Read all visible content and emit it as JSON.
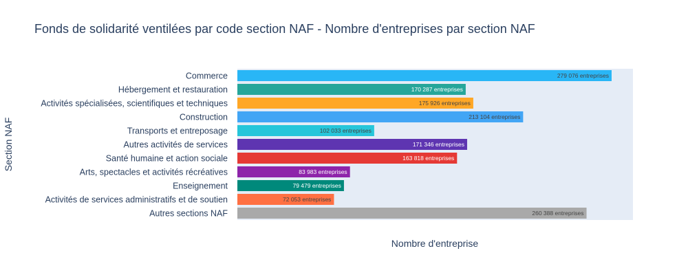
{
  "chart_data": {
    "type": "bar",
    "orientation": "horizontal",
    "title": "Fonds de solidarité ventilées par code section NAF - Nombre d'entreprises par section NAF",
    "xlabel": "Nombre d'entreprise",
    "ylabel": "Section NAF",
    "xlim": [
      0,
      295000
    ],
    "grid": false,
    "categories": [
      "Commerce",
      "Hébergement et restauration",
      "Activités spécialisées, scientifiques et techniques",
      "Construction",
      "Transports et entreposage",
      "Autres activités de services",
      "Santé humaine et action sociale",
      "Arts, spectacles et activités récréatives",
      "Enseignement",
      "Activités de services administratifs et de soutien",
      "Autres sections NAF"
    ],
    "values": [
      279076,
      170287,
      175926,
      213104,
      102033,
      171346,
      163818,
      83983,
      79479,
      72053,
      260388
    ],
    "data_labels": [
      "279 076 entreprises",
      "170 287 entreprises",
      "175 926 entreprises",
      "213 104 entreprises",
      "102 033 entreprises",
      "171 346 entreprises",
      "163 818 entreprises",
      "83 983 entreprises",
      "79 479 entreprises",
      "72 053 entreprises",
      "260 388 entreprises"
    ],
    "colors": [
      "#29b6f6",
      "#26a69a",
      "#ffa726",
      "#42a5f5",
      "#26c6da",
      "#5e35b1",
      "#e53935",
      "#8e24aa",
      "#00897b",
      "#ff7043",
      "#a9a9a9"
    ],
    "label_colors": [
      "#444444",
      "#ffffff",
      "#444444",
      "#444444",
      "#444444",
      "#ffffff",
      "#ffffff",
      "#ffffff",
      "#ffffff",
      "#444444",
      "#444444"
    ],
    "plot_background": "#e5ecf6"
  }
}
